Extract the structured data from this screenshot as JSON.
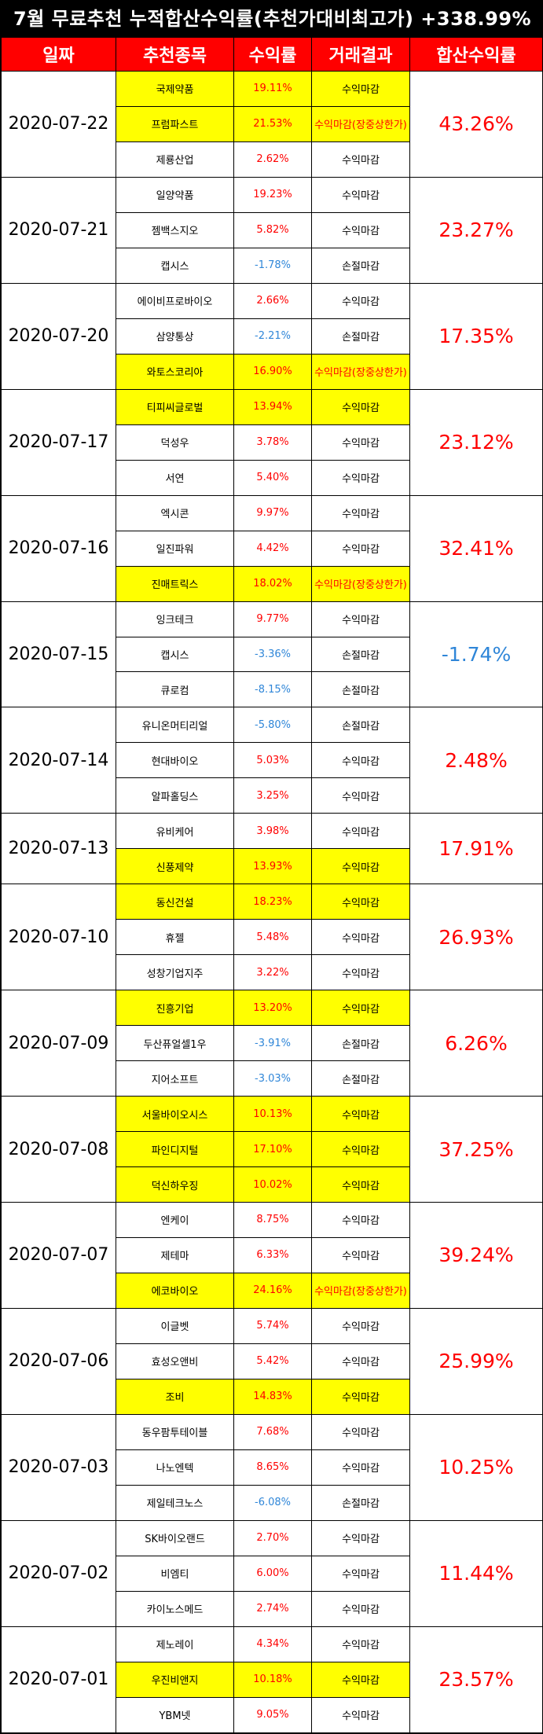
{
  "title": "7월 무료추천 누적합산수익률(추천가대비최고가) +338.99%",
  "headers": [
    "일짜",
    "추천종목",
    "수익률",
    "거래결과",
    "합산수익률"
  ],
  "colors": {
    "header_bg": "#ff0000",
    "highlight": "#ffff00",
    "positive": "#ff0000",
    "negative": "#2f86d8"
  },
  "groups": [
    {
      "date": "2020-07-22",
      "sum": "43.26%",
      "rows": [
        {
          "stock": "국제약품",
          "ret": "19.11%",
          "result": "수익마감",
          "hl": true
        },
        {
          "stock": "프럼파스트",
          "ret": "21.53%",
          "result": "수익마감(장중상한가)",
          "hl": true
        },
        {
          "stock": "제룡산업",
          "ret": "2.62%",
          "result": "수익마감",
          "hl": false
        }
      ]
    },
    {
      "date": "2020-07-21",
      "sum": "23.27%",
      "rows": [
        {
          "stock": "일양약품",
          "ret": "19.23%",
          "result": "수익마감",
          "hl": false
        },
        {
          "stock": "젬백스지오",
          "ret": "5.82%",
          "result": "수익마감",
          "hl": false
        },
        {
          "stock": "캡시스",
          "ret": "-1.78%",
          "result": "손절마감",
          "hl": false
        }
      ]
    },
    {
      "date": "2020-07-20",
      "sum": "17.35%",
      "rows": [
        {
          "stock": "에이비프로바이오",
          "ret": "2.66%",
          "result": "수익마감",
          "hl": false
        },
        {
          "stock": "삼양통상",
          "ret": "-2.21%",
          "result": "손절마감",
          "hl": false
        },
        {
          "stock": "와토스코리아",
          "ret": "16.90%",
          "result": "수익마감(장중상한가)",
          "hl": true
        }
      ]
    },
    {
      "date": "2020-07-17",
      "sum": "23.12%",
      "rows": [
        {
          "stock": "티피씨글로벌",
          "ret": "13.94%",
          "result": "수익마감",
          "hl": true
        },
        {
          "stock": "덕성우",
          "ret": "3.78%",
          "result": "수익마감",
          "hl": false
        },
        {
          "stock": "서연",
          "ret": "5.40%",
          "result": "수익마감",
          "hl": false
        }
      ]
    },
    {
      "date": "2020-07-16",
      "sum": "32.41%",
      "rows": [
        {
          "stock": "엑시콘",
          "ret": "9.97%",
          "result": "수익마감",
          "hl": false
        },
        {
          "stock": "일진파워",
          "ret": "4.42%",
          "result": "수익마감",
          "hl": false
        },
        {
          "stock": "진매트릭스",
          "ret": "18.02%",
          "result": "수익마감(장중상한가)",
          "hl": true
        }
      ]
    },
    {
      "date": "2020-07-15",
      "sum": "-1.74%",
      "rows": [
        {
          "stock": "잉크테크",
          "ret": "9.77%",
          "result": "수익마감",
          "hl": false
        },
        {
          "stock": "캡시스",
          "ret": "-3.36%",
          "result": "손절마감",
          "hl": false
        },
        {
          "stock": "큐로컴",
          "ret": "-8.15%",
          "result": "손절마감",
          "hl": false
        }
      ]
    },
    {
      "date": "2020-07-14",
      "sum": "2.48%",
      "rows": [
        {
          "stock": "유니온머티리얼",
          "ret": "-5.80%",
          "result": "손절마감",
          "hl": false
        },
        {
          "stock": "현대바이오",
          "ret": "5.03%",
          "result": "수익마감",
          "hl": false
        },
        {
          "stock": "알파홀딩스",
          "ret": "3.25%",
          "result": "수익마감",
          "hl": false
        }
      ]
    },
    {
      "date": "2020-07-13",
      "sum": "17.91%",
      "rows": [
        {
          "stock": "유비케어",
          "ret": "3.98%",
          "result": "수익마감",
          "hl": false
        },
        {
          "stock": "신풍제약",
          "ret": "13.93%",
          "result": "수익마감",
          "hl": true
        }
      ]
    },
    {
      "date": "2020-07-10",
      "sum": "26.93%",
      "rows": [
        {
          "stock": "동신건설",
          "ret": "18.23%",
          "result": "수익마감",
          "hl": true
        },
        {
          "stock": "휴젤",
          "ret": "5.48%",
          "result": "수익마감",
          "hl": false
        },
        {
          "stock": "성창기업지주",
          "ret": "3.22%",
          "result": "수익마감",
          "hl": false
        }
      ]
    },
    {
      "date": "2020-07-09",
      "sum": "6.26%",
      "rows": [
        {
          "stock": "진흥기업",
          "ret": "13.20%",
          "result": "수익마감",
          "hl": true
        },
        {
          "stock": "두산퓨얼셀1우",
          "ret": "-3.91%",
          "result": "손절마감",
          "hl": false
        },
        {
          "stock": "지어소프트",
          "ret": "-3.03%",
          "result": "손절마감",
          "hl": false
        }
      ]
    },
    {
      "date": "2020-07-08",
      "sum": "37.25%",
      "rows": [
        {
          "stock": "서울바이오시스",
          "ret": "10.13%",
          "result": "수익마감",
          "hl": true
        },
        {
          "stock": "파인디지털",
          "ret": "17.10%",
          "result": "수익마감",
          "hl": true
        },
        {
          "stock": "덕신하우징",
          "ret": "10.02%",
          "result": "수익마감",
          "hl": true
        }
      ]
    },
    {
      "date": "2020-07-07",
      "sum": "39.24%",
      "rows": [
        {
          "stock": "엔케이",
          "ret": "8.75%",
          "result": "수익마감",
          "hl": false
        },
        {
          "stock": "제테마",
          "ret": "6.33%",
          "result": "수익마감",
          "hl": false
        },
        {
          "stock": "에코바이오",
          "ret": "24.16%",
          "result": "수익마감(장중상한가)",
          "hl": true
        }
      ]
    },
    {
      "date": "2020-07-06",
      "sum": "25.99%",
      "rows": [
        {
          "stock": "이글벳",
          "ret": "5.74%",
          "result": "수익마감",
          "hl": false
        },
        {
          "stock": "효성오앤비",
          "ret": "5.42%",
          "result": "수익마감",
          "hl": false
        },
        {
          "stock": "조비",
          "ret": "14.83%",
          "result": "수익마감",
          "hl": true
        }
      ]
    },
    {
      "date": "2020-07-03",
      "sum": "10.25%",
      "rows": [
        {
          "stock": "동우팜투테이블",
          "ret": "7.68%",
          "result": "수익마감",
          "hl": false
        },
        {
          "stock": "나노엔텍",
          "ret": "8.65%",
          "result": "수익마감",
          "hl": false
        },
        {
          "stock": "제일테크노스",
          "ret": "-6.08%",
          "result": "손절마감",
          "hl": false
        }
      ]
    },
    {
      "date": "2020-07-02",
      "sum": "11.44%",
      "rows": [
        {
          "stock": "SK바이오랜드",
          "ret": "2.70%",
          "result": "수익마감",
          "hl": false
        },
        {
          "stock": "비엠티",
          "ret": "6.00%",
          "result": "수익마감",
          "hl": false
        },
        {
          "stock": "카이노스메드",
          "ret": "2.74%",
          "result": "수익마감",
          "hl": false
        }
      ]
    },
    {
      "date": "2020-07-01",
      "sum": "23.57%",
      "rows": [
        {
          "stock": "제노레이",
          "ret": "4.34%",
          "result": "수익마감",
          "hl": false
        },
        {
          "stock": "우진비앤지",
          "ret": "10.18%",
          "result": "수익마감",
          "hl": true
        },
        {
          "stock": "YBM넷",
          "ret": "9.05%",
          "result": "수익마감",
          "hl": false
        }
      ]
    }
  ]
}
